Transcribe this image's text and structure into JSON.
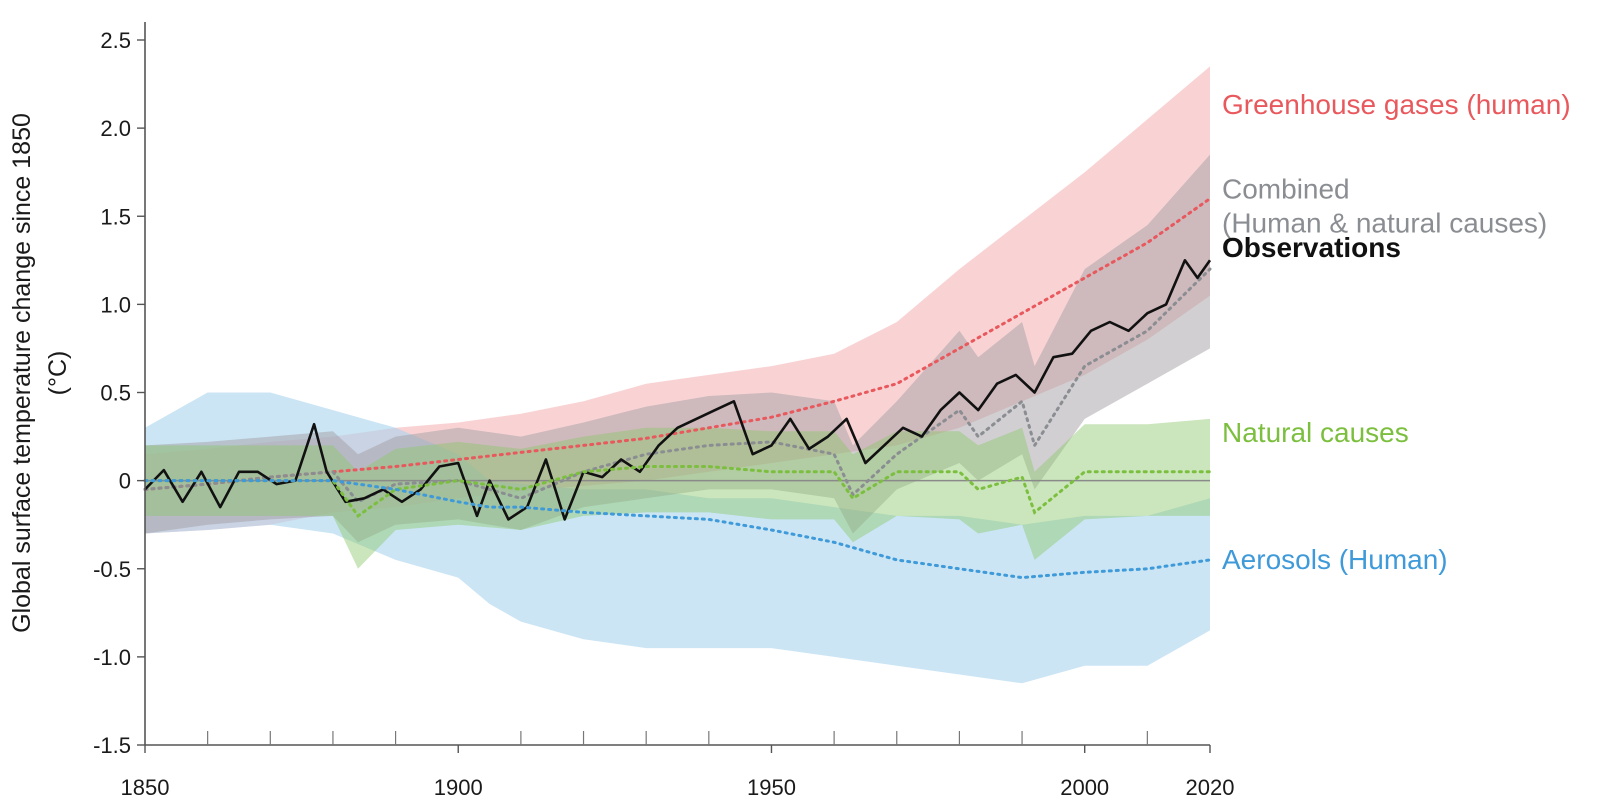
{
  "chart_data": {
    "type": "area",
    "ylabel_line1": "Global surface temperature change since 1850",
    "ylabel_line2": "(°C)",
    "xlim": [
      1850,
      2020
    ],
    "ylim": [
      -1.5,
      2.5
    ],
    "yticks": [
      -1.5,
      -1.0,
      -0.5,
      0,
      0.5,
      1.0,
      1.5,
      2.0,
      2.5
    ],
    "ytick_labels": [
      "-1.5",
      "-1.0",
      "-0.5",
      "0",
      "0.5",
      "1.0",
      "1.5",
      "2.0",
      "2.5"
    ],
    "xticks_major": [
      1850,
      1900,
      1950,
      2000,
      2020
    ],
    "xtick_labels": [
      "1850",
      "1900",
      "1950",
      "2000",
      "2020"
    ],
    "xticks_minor": [
      1860,
      1870,
      1880,
      1890,
      1910,
      1920,
      1930,
      1940,
      1960,
      1970,
      1980,
      1990,
      2010
    ],
    "zero_line": true,
    "grid": false,
    "legend_placement": "right of plot, inline labels",
    "series": [
      {
        "name": "Greenhouse gases (human)",
        "label_lines": [
          "Greenhouse gases (human)"
        ],
        "color": "#e8585c",
        "band_color": "#f7c4c6",
        "label_y": 2.08,
        "x": [
          1850,
          1860,
          1870,
          1880,
          1890,
          1900,
          1910,
          1920,
          1930,
          1940,
          1950,
          1960,
          1970,
          1980,
          2000,
          2010,
          2020
        ],
        "mean": [
          -0.05,
          -0.02,
          0.02,
          0.05,
          0.08,
          0.12,
          0.16,
          0.2,
          0.24,
          0.3,
          0.36,
          0.45,
          0.55,
          0.75,
          1.15,
          1.35,
          1.6
        ],
        "lower": [
          -0.3,
          -0.28,
          -0.25,
          -0.18,
          -0.15,
          -0.1,
          -0.06,
          -0.03,
          0.0,
          0.05,
          0.1,
          0.15,
          0.2,
          0.3,
          0.6,
          0.8,
          1.05
        ],
        "upper": [
          0.15,
          0.18,
          0.22,
          0.25,
          0.3,
          0.33,
          0.38,
          0.45,
          0.55,
          0.6,
          0.65,
          0.72,
          0.9,
          1.2,
          1.75,
          2.05,
          2.35
        ]
      },
      {
        "name": "Combined",
        "label_lines": [
          "Combined",
          "(Human & natural causes)"
        ],
        "color": "#8a8d91",
        "band_color": "#a3a0a4",
        "label_y": 1.6,
        "x": [
          1850,
          1860,
          1870,
          1880,
          1884,
          1890,
          1900,
          1910,
          1920,
          1930,
          1940,
          1950,
          1960,
          1963,
          1970,
          1980,
          1983,
          1990,
          1992,
          2000,
          2010,
          2020
        ],
        "mean": [
          -0.05,
          -0.02,
          0.02,
          0.05,
          -0.12,
          -0.02,
          0.0,
          -0.1,
          0.05,
          0.15,
          0.2,
          0.22,
          0.15,
          -0.08,
          0.15,
          0.4,
          0.25,
          0.45,
          0.2,
          0.65,
          0.85,
          1.2
        ],
        "lower": [
          -0.3,
          -0.25,
          -0.22,
          -0.2,
          -0.35,
          -0.25,
          -0.22,
          -0.28,
          -0.15,
          -0.1,
          -0.05,
          -0.05,
          -0.1,
          -0.3,
          -0.05,
          0.1,
          0.0,
          0.15,
          -0.05,
          0.35,
          0.55,
          0.75
        ],
        "upper": [
          0.2,
          0.22,
          0.25,
          0.28,
          0.15,
          0.25,
          0.3,
          0.25,
          0.33,
          0.42,
          0.48,
          0.5,
          0.45,
          0.2,
          0.45,
          0.85,
          0.7,
          0.9,
          0.65,
          1.2,
          1.45,
          1.85
        ]
      },
      {
        "name": "Observations",
        "label_lines": [
          "Observations"
        ],
        "color": "#111111",
        "label_y": 1.27,
        "x": [
          1850,
          1853,
          1856,
          1859,
          1862,
          1865,
          1868,
          1871,
          1874,
          1877,
          1879,
          1882,
          1885,
          1888,
          1891,
          1894,
          1897,
          1900,
          1903,
          1905,
          1908,
          1911,
          1914,
          1917,
          1920,
          1923,
          1926,
          1929,
          1932,
          1935,
          1938,
          1941,
          1944,
          1947,
          1950,
          1953,
          1956,
          1959,
          1962,
          1965,
          1968,
          1971,
          1974,
          1977,
          1980,
          1983,
          1986,
          1989,
          1992,
          1995,
          1998,
          2001,
          2004,
          2007,
          2010,
          2013,
          2016,
          2018,
          2020
        ],
        "values": [
          -0.05,
          0.06,
          -0.12,
          0.05,
          -0.15,
          0.05,
          0.05,
          -0.02,
          0.0,
          0.32,
          0.05,
          -0.12,
          -0.1,
          -0.05,
          -0.12,
          -0.05,
          0.08,
          0.1,
          -0.2,
          0.0,
          -0.22,
          -0.15,
          0.12,
          -0.22,
          0.05,
          0.02,
          0.12,
          0.05,
          0.2,
          0.3,
          0.35,
          0.4,
          0.45,
          0.15,
          0.2,
          0.35,
          0.18,
          0.25,
          0.35,
          0.1,
          0.2,
          0.3,
          0.25,
          0.4,
          0.5,
          0.4,
          0.55,
          0.6,
          0.5,
          0.7,
          0.72,
          0.85,
          0.9,
          0.85,
          0.95,
          1.0,
          1.25,
          1.15,
          1.25
        ]
      },
      {
        "name": "Natural causes",
        "label_lines": [
          "Natural causes"
        ],
        "color": "#7cbf3f",
        "band_color": "#8cc76a",
        "label_y": 0.22,
        "x": [
          1850,
          1860,
          1870,
          1880,
          1884,
          1890,
          1900,
          1910,
          1920,
          1930,
          1940,
          1950,
          1960,
          1963,
          1970,
          1980,
          1983,
          1990,
          1992,
          2000,
          2010,
          2020
        ],
        "mean": [
          0.0,
          0.0,
          0.0,
          0.0,
          -0.2,
          -0.05,
          0.0,
          -0.05,
          0.05,
          0.08,
          0.08,
          0.05,
          0.05,
          -0.1,
          0.05,
          0.05,
          -0.05,
          0.02,
          -0.18,
          0.05,
          0.05,
          0.05
        ],
        "lower": [
          -0.2,
          -0.2,
          -0.2,
          -0.2,
          -0.5,
          -0.28,
          -0.25,
          -0.28,
          -0.2,
          -0.18,
          -0.18,
          -0.22,
          -0.22,
          -0.35,
          -0.2,
          -0.22,
          -0.3,
          -0.25,
          -0.45,
          -0.22,
          -0.2,
          -0.2
        ],
        "upper": [
          0.2,
          0.2,
          0.2,
          0.2,
          0.05,
          0.18,
          0.22,
          0.18,
          0.25,
          0.3,
          0.3,
          0.28,
          0.28,
          0.15,
          0.28,
          0.28,
          0.2,
          0.3,
          0.05,
          0.32,
          0.32,
          0.35
        ]
      },
      {
        "name": "Aerosols (Human)",
        "label_lines": [
          "Aerosols (Human)"
        ],
        "color": "#3f9ad9",
        "band_color": "#a9d3ee",
        "label_y": -0.5,
        "x": [
          1850,
          1860,
          1870,
          1880,
          1890,
          1900,
          1905,
          1910,
          1920,
          1930,
          1940,
          1950,
          1960,
          1970,
          1980,
          1990,
          2000,
          2010,
          2020
        ],
        "mean": [
          0.0,
          0.0,
          0.0,
          0.0,
          -0.05,
          -0.12,
          -0.15,
          -0.15,
          -0.18,
          -0.2,
          -0.22,
          -0.28,
          -0.35,
          -0.45,
          -0.5,
          -0.55,
          -0.52,
          -0.5,
          -0.45
        ],
        "lower": [
          -0.3,
          -0.28,
          -0.25,
          -0.3,
          -0.45,
          -0.55,
          -0.7,
          -0.8,
          -0.9,
          -0.95,
          -0.95,
          -0.95,
          -1.0,
          -1.05,
          -1.1,
          -1.15,
          -1.05,
          -1.05,
          -0.85
        ],
        "upper": [
          0.3,
          0.5,
          0.5,
          0.4,
          0.3,
          0.15,
          0.0,
          -0.02,
          -0.05,
          -0.05,
          -0.1,
          -0.1,
          -0.15,
          -0.2,
          -0.2,
          -0.25,
          -0.2,
          -0.2,
          -0.1
        ]
      }
    ]
  }
}
